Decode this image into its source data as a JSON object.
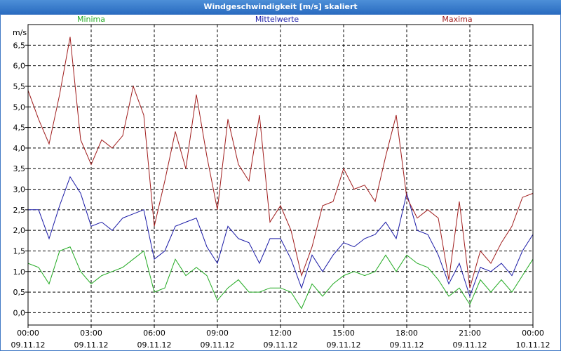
{
  "window": {
    "title": "Windgeschwindigkeit [m/s] skaliert"
  },
  "chart_data": {
    "type": "line",
    "ylabel": "m/s",
    "ylim": [
      -0.3,
      7.0
    ],
    "xlim": [
      0,
      24
    ],
    "grid": true,
    "legend_placement": "top",
    "yticks": [
      0.0,
      0.5,
      1.0,
      1.5,
      2.0,
      2.5,
      3.0,
      3.5,
      4.0,
      4.5,
      5.0,
      5.5,
      6.0,
      6.5
    ],
    "ytick_labels": [
      "0,0",
      "0,5",
      "1,0",
      "1,5",
      "2,0",
      "2,5",
      "3,0",
      "3,5",
      "4,0",
      "4,5",
      "5,0",
      "5,5",
      "6,0",
      "6,5"
    ],
    "xticks": [
      0,
      3,
      6,
      9,
      12,
      15,
      18,
      21,
      24
    ],
    "xtick_labels": [
      [
        "00:00",
        "09.11.12"
      ],
      [
        "03:00",
        "09.11.12"
      ],
      [
        "06:00",
        "09.11.12"
      ],
      [
        "09:00",
        "09.11.12"
      ],
      [
        "12:00",
        "09.11.12"
      ],
      [
        "15:00",
        "09.11.12"
      ],
      [
        "18:00",
        "09.11.12"
      ],
      [
        "21:00",
        "09.11.12"
      ],
      [
        "00:00",
        "10.11.12"
      ]
    ],
    "x": [
      0,
      0.5,
      1,
      1.5,
      2,
      2.5,
      3,
      3.5,
      4,
      4.5,
      5,
      5.5,
      6,
      6.5,
      7,
      7.5,
      8,
      8.5,
      9,
      9.5,
      10,
      10.5,
      11,
      11.5,
      12,
      12.5,
      13,
      13.5,
      14,
      14.5,
      15,
      15.5,
      16,
      16.5,
      17,
      17.5,
      18,
      18.5,
      19,
      19.5,
      20,
      20.5,
      21,
      21.5,
      22,
      22.5,
      23,
      23.5,
      24
    ],
    "series": [
      {
        "name": "Minima",
        "color": "#22aa22",
        "values": [
          1.2,
          1.1,
          0.7,
          1.5,
          1.6,
          1.0,
          0.7,
          0.9,
          1.0,
          1.1,
          1.3,
          1.5,
          0.5,
          0.6,
          1.3,
          0.9,
          1.1,
          0.9,
          0.3,
          0.6,
          0.8,
          0.5,
          0.5,
          0.6,
          0.6,
          0.5,
          0.1,
          0.7,
          0.4,
          0.7,
          0.9,
          1.0,
          0.9,
          1.0,
          1.4,
          1.0,
          1.4,
          1.2,
          1.1,
          0.8,
          0.4,
          0.6,
          0.2,
          0.8,
          0.5,
          0.8,
          0.5,
          0.9,
          1.3
        ]
      },
      {
        "name": "Mittelwerte",
        "color": "#1a1aa6",
        "values": [
          2.5,
          2.5,
          1.8,
          2.6,
          3.3,
          2.9,
          2.1,
          2.2,
          2.0,
          2.3,
          2.4,
          2.5,
          1.3,
          1.5,
          2.1,
          2.2,
          2.3,
          1.6,
          1.2,
          2.1,
          1.8,
          1.7,
          1.2,
          1.8,
          1.8,
          1.3,
          0.6,
          1.4,
          1.0,
          1.4,
          1.7,
          1.6,
          1.8,
          1.9,
          2.2,
          1.8,
          2.9,
          2.0,
          1.9,
          1.4,
          0.7,
          1.2,
          0.4,
          1.1,
          1.0,
          1.2,
          0.9,
          1.5,
          1.9
        ]
      },
      {
        "name": "Maxima",
        "color": "#a01c1c",
        "values": [
          5.4,
          4.7,
          4.1,
          5.3,
          6.7,
          4.2,
          3.6,
          4.2,
          4.0,
          4.3,
          5.5,
          4.8,
          2.1,
          3.2,
          4.4,
          3.5,
          5.3,
          3.8,
          2.5,
          4.7,
          3.6,
          3.2,
          4.8,
          2.2,
          2.6,
          2.0,
          0.9,
          1.6,
          2.6,
          2.7,
          3.5,
          3.0,
          3.1,
          2.7,
          3.8,
          4.8,
          2.8,
          2.3,
          2.5,
          2.3,
          0.8,
          2.7,
          0.6,
          1.5,
          1.2,
          1.7,
          2.1,
          2.8,
          2.9
        ]
      }
    ]
  }
}
